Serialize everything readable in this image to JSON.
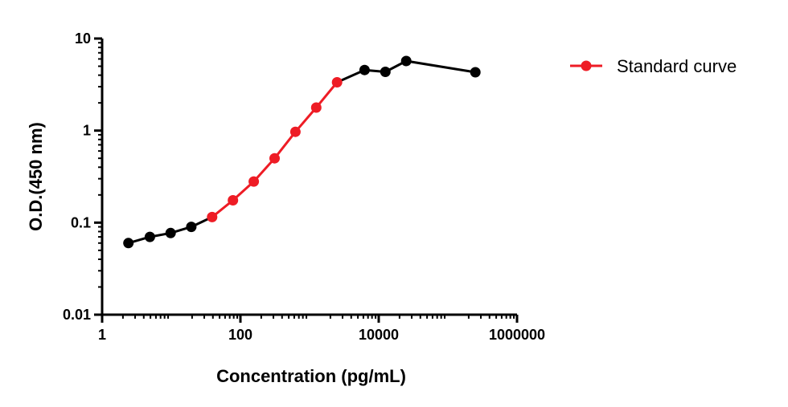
{
  "chart_data": {
    "type": "line",
    "xlabel": "Concentration (pg/mL)",
    "ylabel": "O.D.(450 nm)",
    "xscale": "log",
    "yscale": "log",
    "xlim": [
      1,
      1000000
    ],
    "ylim": [
      0.01,
      10
    ],
    "x_ticks": [
      {
        "value": 1,
        "label": "1"
      },
      {
        "value": 100,
        "label": "100"
      },
      {
        "value": 10000,
        "label": "10000"
      },
      {
        "value": 1000000,
        "label": "1000000"
      }
    ],
    "y_ticks": [
      {
        "value": 0.01,
        "label": "0.01"
      },
      {
        "value": 0.1,
        "label": "0.1"
      },
      {
        "value": 1,
        "label": "1"
      },
      {
        "value": 10,
        "label": "10"
      }
    ],
    "grid": false,
    "legend_position": "top-right",
    "series": [
      {
        "name": "",
        "color": "#000000",
        "x": [
          2.4,
          4.9,
          9.8,
          19.5,
          39
        ],
        "y": [
          0.06,
          0.07,
          0.077,
          0.09,
          0.115
        ]
      },
      {
        "name": "Standard curve",
        "color": "#ee1c25",
        "x": [
          39,
          78,
          156,
          312,
          625,
          1250,
          2500
        ],
        "y": [
          0.115,
          0.175,
          0.28,
          0.5,
          0.97,
          1.78,
          3.35
        ]
      },
      {
        "name": "",
        "color": "#000000",
        "x": [
          2500,
          6250,
          12500,
          25000,
          250000
        ],
        "y": [
          3.35,
          4.55,
          4.35,
          5.7,
          4.3
        ]
      }
    ],
    "points": [
      {
        "x": 2.4,
        "y": 0.06,
        "color": "#000000"
      },
      {
        "x": 4.9,
        "y": 0.07,
        "color": "#000000"
      },
      {
        "x": 9.8,
        "y": 0.077,
        "color": "#000000"
      },
      {
        "x": 19.5,
        "y": 0.09,
        "color": "#000000"
      },
      {
        "x": 39,
        "y": 0.115,
        "color": "#ee1c25"
      },
      {
        "x": 78,
        "y": 0.175,
        "color": "#ee1c25"
      },
      {
        "x": 156,
        "y": 0.28,
        "color": "#ee1c25"
      },
      {
        "x": 312,
        "y": 0.5,
        "color": "#ee1c25"
      },
      {
        "x": 625,
        "y": 0.97,
        "color": "#ee1c25"
      },
      {
        "x": 1250,
        "y": 1.78,
        "color": "#ee1c25"
      },
      {
        "x": 2500,
        "y": 3.35,
        "color": "#ee1c25"
      },
      {
        "x": 6250,
        "y": 4.55,
        "color": "#000000"
      },
      {
        "x": 12500,
        "y": 4.35,
        "color": "#000000"
      },
      {
        "x": 25000,
        "y": 5.7,
        "color": "#000000"
      },
      {
        "x": 250000,
        "y": 4.3,
        "color": "#000000"
      }
    ],
    "legend": [
      {
        "label": "Standard curve",
        "color": "#ee1c25"
      }
    ]
  }
}
